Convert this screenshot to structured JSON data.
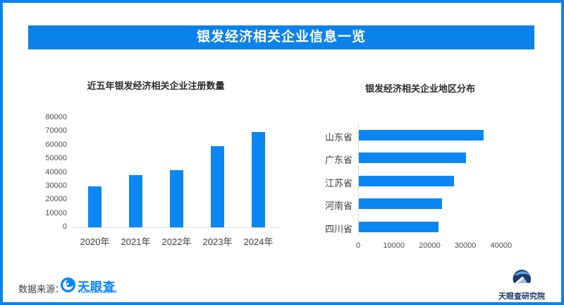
{
  "header": {
    "title": "银发经济相关企业信息一览"
  },
  "colors": {
    "accent_blue": "#0b82ea",
    "bar_blue": "#0c87f2",
    "logo_blue": "#0084ff",
    "institute_navy": "#1c3a69"
  },
  "chart_data": [
    {
      "type": "bar",
      "orientation": "vertical",
      "title": "近五年银发经济相关企业注册数量",
      "categories": [
        "2020年",
        "2021年",
        "2022年",
        "2023年",
        "2024年"
      ],
      "values": [
        29700,
        38000,
        42000,
        59500,
        69500
      ],
      "ylabel": "",
      "xlabel": "",
      "ylim": [
        0,
        80000
      ],
      "yticks": [
        "0",
        "10000",
        "20000",
        "30000",
        "40000",
        "50000",
        "60000",
        "70000",
        "80000"
      ],
      "grid": false,
      "legend": "none"
    },
    {
      "type": "bar",
      "orientation": "horizontal",
      "title": "银发经济相关企业地区分布",
      "categories": [
        "山东省",
        "广东省",
        "江苏省",
        "河南省",
        "四川省"
      ],
      "values": [
        35000,
        30000,
        26700,
        23200,
        22300
      ],
      "ylabel": "",
      "xlabel": "",
      "xlim": [
        0,
        40000
      ],
      "xticks": [
        "0",
        "10000",
        "20000",
        "30000",
        "40000"
      ],
      "grid": false,
      "legend": "none"
    }
  ],
  "footer": {
    "source_label": "数据来源：",
    "tianyancha_logo_text": "天眼查",
    "tianyancha_logo_url": "TianYanCha.com",
    "institute_name": "天眼查研究院"
  }
}
